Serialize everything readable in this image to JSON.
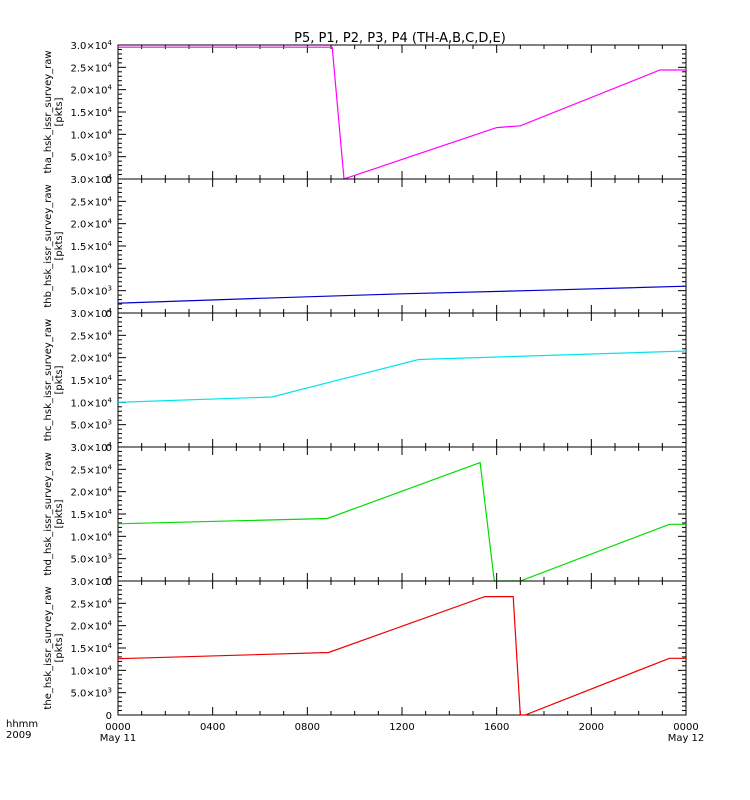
{
  "chart_data": {
    "type": "line",
    "title": "P5, P1, P2, P3, P4 (TH-A,B,C,D,E)",
    "x_ticks": [
      "0000",
      "0400",
      "0800",
      "1200",
      "1600",
      "2000",
      "0000"
    ],
    "x_tick_dates": [
      "May 11",
      "",
      "",
      "",
      "",
      "",
      "May 12"
    ],
    "x_axis_label_line1": "hhmm",
    "x_axis_label_line2": "2009",
    "xlim": [
      0,
      24
    ],
    "panels": [
      {
        "name": "tha",
        "ylabel": "tha_hsk_issr_survey_raw",
        "unit": "[pkts]",
        "color": "#ff00ff",
        "ylim": [
          0,
          30000
        ],
        "yticks": [
          {
            "mant": "0",
            "exp": ""
          },
          {
            "mant": "5.0×10",
            "exp": "3"
          },
          {
            "mant": "1.0×10",
            "exp": "4"
          },
          {
            "mant": "1.5×10",
            "exp": "4"
          },
          {
            "mant": "2.0×10",
            "exp": "4"
          },
          {
            "mant": "2.5×10",
            "exp": "4"
          },
          {
            "mant": "3.0×10",
            "exp": "4"
          }
        ],
        "points": [
          [
            0,
            29500
          ],
          [
            9.05,
            29500
          ],
          [
            9.55,
            0
          ],
          [
            16.0,
            11500
          ],
          [
            17.0,
            11900
          ],
          [
            22.9,
            24400
          ],
          [
            24,
            24400
          ]
        ]
      },
      {
        "name": "thb",
        "ylabel": "thb_hsk_issr_survey_raw",
        "unit": "[pkts]",
        "color": "#0000cc",
        "ylim": [
          0,
          30000
        ],
        "yticks": [
          {
            "mant": "0",
            "exp": ""
          },
          {
            "mant": "5.0×10",
            "exp": "3"
          },
          {
            "mant": "1.0×10",
            "exp": "4"
          },
          {
            "mant": "1.5×10",
            "exp": "4"
          },
          {
            "mant": "2.0×10",
            "exp": "4"
          },
          {
            "mant": "2.5×10",
            "exp": "4"
          },
          {
            "mant": "3.0×10",
            "exp": "4"
          }
        ],
        "points": [
          [
            0,
            2200
          ],
          [
            6.0,
            3300
          ],
          [
            12.0,
            4300
          ],
          [
            18.0,
            5100
          ],
          [
            24,
            6000
          ]
        ]
      },
      {
        "name": "thc",
        "ylabel": "thc_hsk_issr_survey_raw",
        "unit": "[pkts]",
        "color": "#00e5ee",
        "ylim": [
          0,
          30000
        ],
        "yticks": [
          {
            "mant": "0",
            "exp": ""
          },
          {
            "mant": "5.0×10",
            "exp": "3"
          },
          {
            "mant": "1.0×10",
            "exp": "4"
          },
          {
            "mant": "1.5×10",
            "exp": "4"
          },
          {
            "mant": "2.0×10",
            "exp": "4"
          },
          {
            "mant": "2.5×10",
            "exp": "4"
          },
          {
            "mant": "3.0×10",
            "exp": "4"
          }
        ],
        "points": [
          [
            0,
            10000
          ],
          [
            6.5,
            11200
          ],
          [
            12.7,
            19600
          ],
          [
            24,
            21500
          ]
        ]
      },
      {
        "name": "thd",
        "ylabel": "thd_hsk_issr_survey_raw",
        "unit": "[pkts]",
        "color": "#00dd00",
        "ylim": [
          0,
          30000
        ],
        "yticks": [
          {
            "mant": "0",
            "exp": ""
          },
          {
            "mant": "5.0×10",
            "exp": "3"
          },
          {
            "mant": "1.0×10",
            "exp": "4"
          },
          {
            "mant": "1.5×10",
            "exp": "4"
          },
          {
            "mant": "2.0×10",
            "exp": "4"
          },
          {
            "mant": "2.5×10",
            "exp": "4"
          },
          {
            "mant": "3.0×10",
            "exp": "4"
          }
        ],
        "points": [
          [
            0,
            12800
          ],
          [
            8.85,
            14000
          ],
          [
            15.3,
            26500
          ],
          [
            15.9,
            0
          ],
          [
            17.0,
            0
          ],
          [
            23.3,
            12700
          ],
          [
            24,
            12700
          ]
        ]
      },
      {
        "name": "the",
        "ylabel": "the_hsk_issr_survey_raw",
        "unit": "[pkts]",
        "color": "#ee0000",
        "ylim": [
          0,
          30000
        ],
        "yticks": [
          {
            "mant": "0",
            "exp": ""
          },
          {
            "mant": "5.0×10",
            "exp": "3"
          },
          {
            "mant": "1.0×10",
            "exp": "4"
          },
          {
            "mant": "1.5×10",
            "exp": "4"
          },
          {
            "mant": "2.0×10",
            "exp": "4"
          },
          {
            "mant": "2.5×10",
            "exp": "4"
          },
          {
            "mant": "3.0×10",
            "exp": "4"
          }
        ],
        "points": [
          [
            0,
            12600
          ],
          [
            8.9,
            14000
          ],
          [
            15.5,
            26500
          ],
          [
            16.7,
            26500
          ],
          [
            17.0,
            0
          ],
          [
            17.2,
            0
          ],
          [
            23.3,
            12700
          ],
          [
            24,
            12700
          ]
        ]
      }
    ]
  }
}
